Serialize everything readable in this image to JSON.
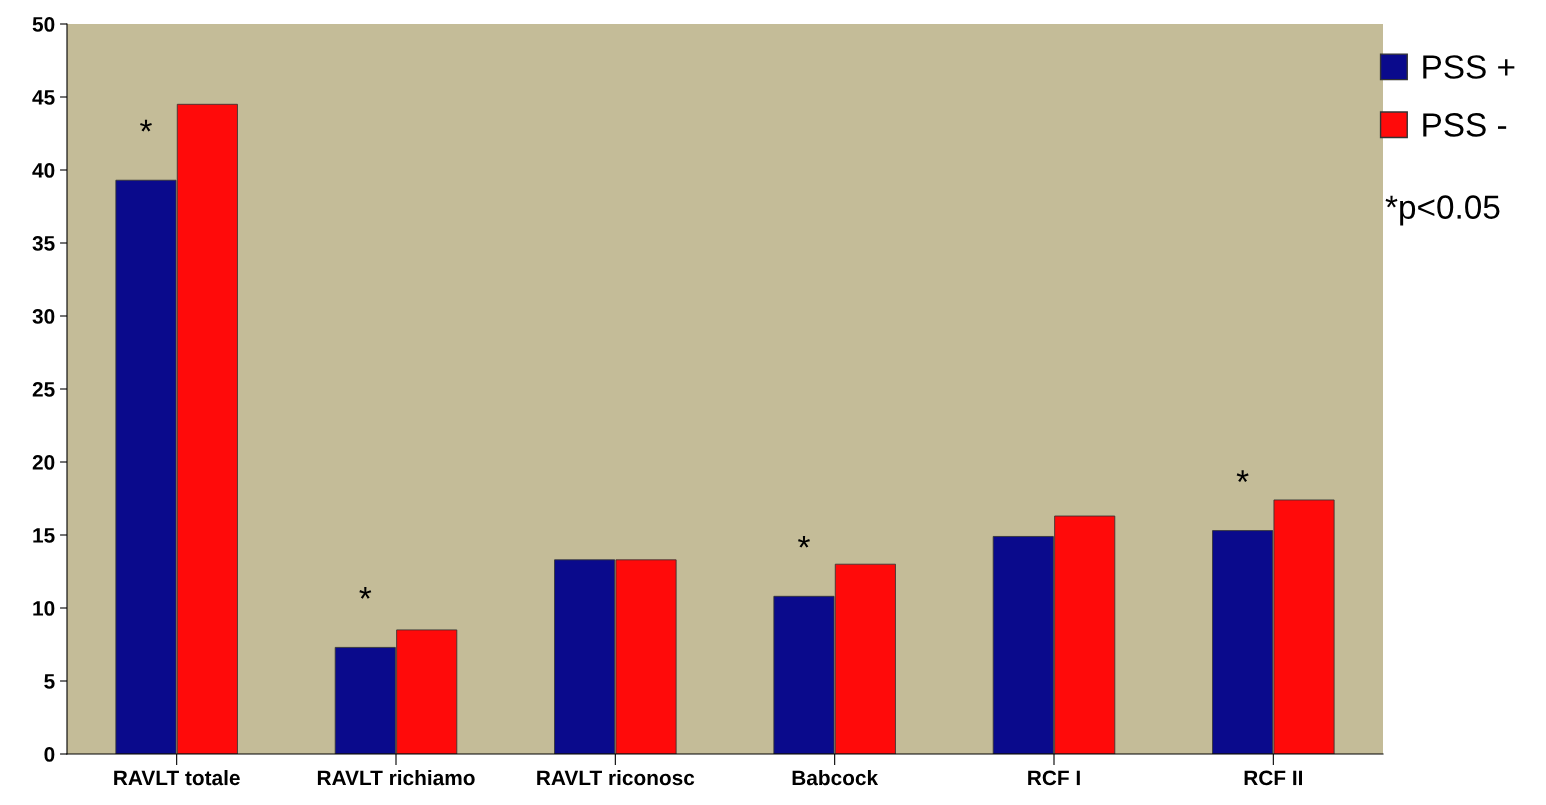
{
  "chart_data": {
    "type": "bar",
    "categories": [
      "RAVLT totale",
      "RAVLT richiamo",
      "RAVLT riconosc",
      "Babcock",
      "RCF I",
      "RCF II"
    ],
    "series": [
      {
        "name": "PSS +",
        "color": "#0a0a8c",
        "values": [
          39.3,
          7.3,
          13.3,
          10.8,
          14.9,
          15.3
        ]
      },
      {
        "name": "PSS -",
        "color": "#ff0a0a",
        "values": [
          44.5,
          8.5,
          13.3,
          13.0,
          16.3,
          17.4
        ]
      }
    ],
    "ylim": [
      0,
      50
    ],
    "yticks": [
      0,
      5,
      10,
      15,
      20,
      25,
      30,
      35,
      40,
      45,
      50
    ],
    "grid": false,
    "legend": "top right",
    "annotations": [
      {
        "text": "*",
        "x": "RAVLT totale",
        "y": 39.3
      },
      {
        "text": "*",
        "x": "RAVLT richiamo",
        "y": 7.3
      },
      {
        "text": "*",
        "x": "Babcock",
        "y": 10.8
      },
      {
        "text": "*",
        "x": "RCF II",
        "y": 15.3
      },
      "*p<0.05"
    ]
  }
}
